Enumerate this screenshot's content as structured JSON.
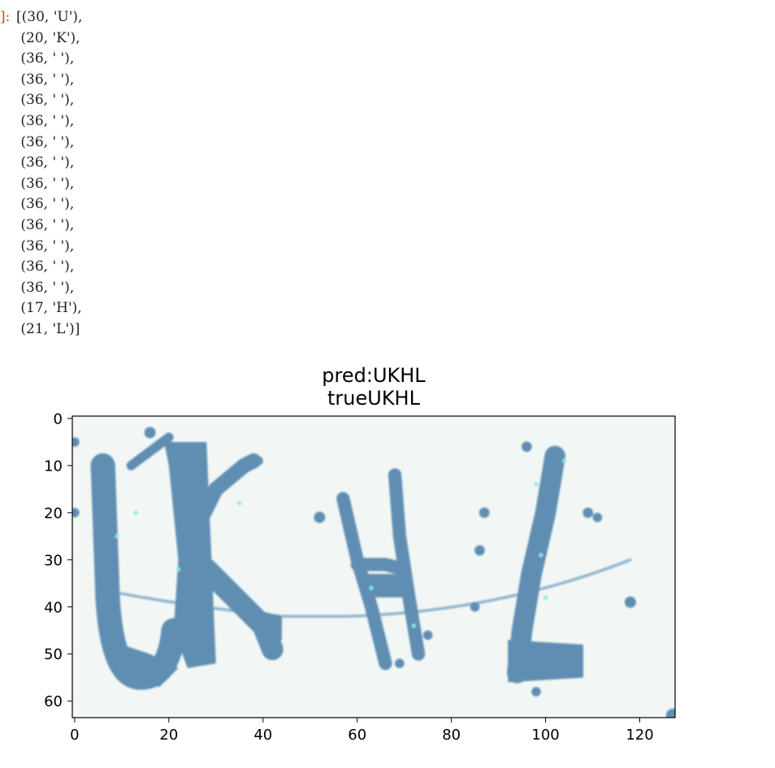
{
  "cell": {
    "prompt": "]:",
    "output_lines": [
      "[(30, 'U'),",
      " (20, 'K'),",
      " (36, ' '),",
      " (36, ' '),",
      " (36, ' '),",
      " (36, ' '),",
      " (36, ' '),",
      " (36, ' '),",
      " (36, ' '),",
      " (36, ' '),",
      " (36, ' '),",
      " (36, ' '),",
      " (36, ' '),",
      " (36, ' '),",
      " (17, 'H'),",
      " (21, 'L')]"
    ]
  },
  "chart_data": {
    "type": "image",
    "title_lines": [
      "pred:UKHL",
      "trueUKHL"
    ],
    "image_text": "UKHL",
    "x_ticks": [
      0,
      20,
      40,
      60,
      80,
      100,
      120
    ],
    "y_ticks": [
      0,
      10,
      20,
      30,
      40,
      50,
      60
    ],
    "xlim": [
      -0.5,
      127.5
    ],
    "ylim": [
      63.5,
      -0.5
    ],
    "grid": false,
    "colors": {
      "background": "#f2f7f5",
      "ink": "#5f8eb2",
      "ink_light": "#8fb4cf",
      "speckle": "#8be8ea"
    }
  }
}
